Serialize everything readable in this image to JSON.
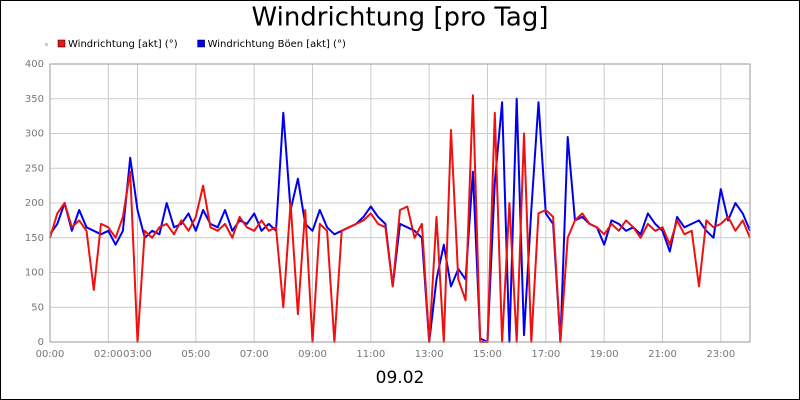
{
  "chart_data": {
    "type": "line",
    "title": "Windrichtung [pro Tag]",
    "x_label": "09.02",
    "x": [
      0,
      0.25,
      0.5,
      0.75,
      1,
      1.25,
      1.5,
      1.75,
      2,
      2.25,
      2.5,
      2.75,
      3,
      3.25,
      3.5,
      3.75,
      4,
      4.25,
      4.5,
      4.75,
      5,
      5.25,
      5.5,
      5.75,
      6,
      6.25,
      6.5,
      6.75,
      7,
      7.25,
      7.5,
      7.75,
      8,
      8.25,
      8.5,
      8.75,
      9,
      9.25,
      9.5,
      9.75,
      10,
      10.25,
      10.5,
      10.75,
      11,
      11.25,
      11.5,
      11.75,
      12,
      12.25,
      12.5,
      12.75,
      13,
      13.25,
      13.5,
      13.75,
      14,
      14.25,
      14.5,
      14.75,
      15,
      15.25,
      15.5,
      15.75,
      16,
      16.25,
      16.5,
      16.75,
      17,
      17.25,
      17.5,
      17.75,
      18,
      18.25,
      18.5,
      18.75,
      19,
      19.25,
      19.5,
      19.75,
      20,
      20.25,
      20.5,
      20.75,
      21,
      21.25,
      21.5,
      21.75,
      22,
      22.25,
      22.5,
      22.75,
      23,
      23.25,
      23.5,
      23.75,
      24
    ],
    "series": [
      {
        "name": "Windrichtung Böen [akt] (°)",
        "color": "#0000ee",
        "values": [
          155,
          170,
          200,
          160,
          190,
          165,
          160,
          155,
          160,
          140,
          160,
          265,
          190,
          150,
          160,
          155,
          200,
          165,
          170,
          185,
          160,
          190,
          170,
          165,
          190,
          160,
          175,
          170,
          185,
          160,
          170,
          160,
          330,
          190,
          235,
          170,
          160,
          190,
          165,
          155,
          160,
          165,
          170,
          180,
          195,
          180,
          170,
          80,
          170,
          165,
          160,
          150,
          0,
          90,
          140,
          80,
          105,
          90,
          245,
          5,
          0,
          230,
          345,
          0,
          350,
          10,
          190,
          345,
          185,
          170,
          0,
          295,
          175,
          180,
          170,
          165,
          140,
          175,
          170,
          160,
          165,
          155,
          185,
          170,
          160,
          130,
          180,
          165,
          170,
          175,
          160,
          150,
          220,
          175,
          200,
          185,
          160
        ]
      },
      {
        "name": "Windrichtung [akt] (°)",
        "color": "#ee1111",
        "values": [
          150,
          185,
          200,
          165,
          175,
          160,
          75,
          170,
          165,
          150,
          180,
          245,
          0,
          160,
          150,
          165,
          170,
          155,
          175,
          160,
          180,
          225,
          165,
          160,
          170,
          150,
          180,
          165,
          160,
          175,
          160,
          165,
          50,
          200,
          40,
          190,
          0,
          170,
          160,
          0,
          160,
          165,
          170,
          175,
          185,
          170,
          165,
          80,
          190,
          195,
          150,
          170,
          0,
          180,
          0,
          305,
          90,
          60,
          355,
          0,
          0,
          330,
          0,
          200,
          0,
          300,
          0,
          185,
          190,
          180,
          0,
          150,
          175,
          185,
          170,
          165,
          155,
          170,
          160,
          175,
          165,
          150,
          170,
          160,
          165,
          140,
          175,
          155,
          160,
          80,
          175,
          165,
          170,
          180,
          160,
          175,
          150
        ]
      }
    ],
    "legend_order": [
      1,
      0
    ],
    "xlim": [
      0,
      24
    ],
    "xticks": [
      {
        "value": 0,
        "label": "00:00"
      },
      {
        "value": 2,
        "label": "02:00"
      },
      {
        "value": 3,
        "label": "03:00"
      },
      {
        "value": 5,
        "label": "05:00"
      },
      {
        "value": 7,
        "label": "07:00"
      },
      {
        "value": 9,
        "label": "09:00"
      },
      {
        "value": 11,
        "label": "11:00"
      },
      {
        "value": 13,
        "label": "13:00"
      },
      {
        "value": 15,
        "label": "15:00"
      },
      {
        "value": 17,
        "label": "17:00"
      },
      {
        "value": 19,
        "label": "19:00"
      },
      {
        "value": 21,
        "label": "21:00"
      },
      {
        "value": 23,
        "label": "23:00"
      }
    ],
    "ylim": [
      0,
      400
    ],
    "yticks": [
      0,
      50,
      100,
      150,
      200,
      250,
      300,
      350,
      400
    ],
    "grid": true
  }
}
